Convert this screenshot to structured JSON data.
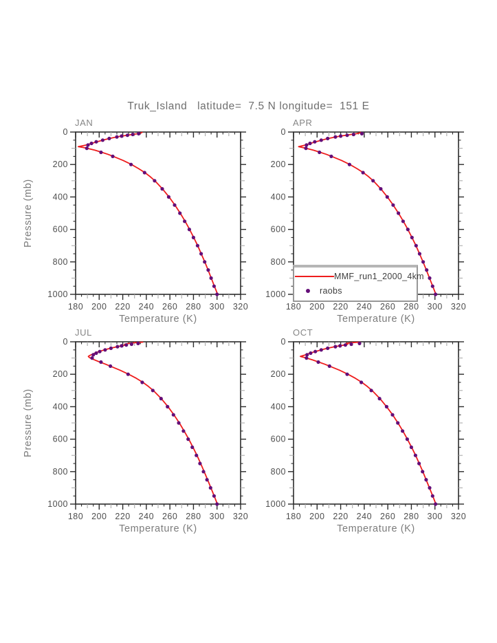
{
  "page": {
    "title": "Truk_Island   latitude=  7.5 N longitude=  151 E"
  },
  "colors": {
    "model_line": "#ee1c1c",
    "raobs_dot": "#640e78",
    "frame": "#2b2b2b",
    "tick_minor_gray": "#ababab",
    "tick_label_text": "#4e4e4e",
    "title_text": "#6e6e6e",
    "axis_title_text": "#7c7c7c",
    "legend_border": "#979797"
  },
  "legend": {
    "entries": [
      {
        "label": "MMF_run1_2000_4km",
        "type": "line",
        "color": "#ee1c1c"
      },
      {
        "label": "raobs",
        "type": "dot",
        "color": "#640e78"
      }
    ]
  },
  "axes": {
    "x": {
      "title": "Temperature (K)",
      "min": 180,
      "max": 320,
      "major_step": 20,
      "mid_step": 10,
      "minor_step": 5,
      "tick_values": [
        180,
        200,
        220,
        240,
        260,
        280,
        300,
        320
      ],
      "tick_labels": [
        "180",
        "200",
        "220",
        "240",
        "260",
        "280",
        "300",
        "320"
      ]
    },
    "y": {
      "title": "Pressure (mb)",
      "min": 0,
      "max": 1000,
      "major_step": 200,
      "mid_step": 100,
      "minor_step": 50,
      "tick_values": [
        0,
        200,
        400,
        600,
        800,
        1000
      ],
      "tick_labels": [
        "0",
        "200",
        "400",
        "600",
        "800",
        "1000"
      ],
      "inverted": true
    }
  },
  "chart_data": [
    {
      "type": "line",
      "panel_label": "JAN",
      "xlabel": "Temperature (K)",
      "ylabel": "Pressure (mb)",
      "xlim": [
        180,
        320
      ],
      "ylim": [
        1000,
        0
      ],
      "series": [
        {
          "name": "MMF_run1_2000_4km",
          "type": "line",
          "pressure_mb": [
            1000,
            950,
            900,
            850,
            800,
            750,
            700,
            650,
            600,
            550,
            500,
            450,
            400,
            350,
            300,
            275,
            250,
            225,
            200,
            175,
            150,
            137,
            125,
            112,
            100,
            95,
            90,
            85,
            80,
            70,
            60,
            50,
            40,
            30,
            25,
            20,
            15,
            10,
            5,
            2
          ],
          "temperature_k": [
            300.5,
            297.8,
            295.1,
            292.4,
            289.6,
            286.6,
            283.6,
            280.2,
            276.7,
            272.9,
            268.8,
            264.3,
            259.3,
            253.7,
            247.2,
            243.3,
            238.8,
            233.4,
            227.4,
            220.3,
            212.0,
            207.3,
            202.3,
            196.4,
            189.8,
            186.2,
            182.2,
            185.6,
            189.0,
            193.6,
            198.0,
            203.2,
            208.6,
            215.0,
            219.0,
            223.8,
            228.2,
            233.0,
            235.6,
            236.4
          ]
        },
        {
          "name": "raobs",
          "type": "scatter",
          "pressure_mb": [
            1000,
            950,
            900,
            850,
            800,
            750,
            700,
            650,
            600,
            550,
            500,
            450,
            400,
            350,
            300,
            250,
            200,
            150,
            125,
            100,
            80,
            70,
            60,
            50,
            40,
            30,
            25,
            20,
            15,
            10
          ],
          "temperature_k": [
            300.0,
            297.5,
            295.0,
            292.5,
            289.5,
            286.5,
            283.5,
            280.0,
            276.5,
            272.5,
            268.5,
            264.0,
            259.0,
            253.5,
            247.0,
            238.5,
            227.0,
            211.5,
            201.5,
            189.5,
            190.5,
            193.5,
            197.5,
            203.0,
            208.5,
            215.0,
            219.0,
            224.0,
            228.5,
            233.5
          ]
        }
      ]
    },
    {
      "type": "line",
      "panel_label": "APR",
      "xlabel": "Temperature (K)",
      "ylabel": "Pressure (mb)",
      "xlim": [
        180,
        320
      ],
      "ylim": [
        1000,
        0
      ],
      "series": [
        {
          "name": "MMF_run1_2000_4km",
          "type": "line",
          "pressure_mb": [
            1000,
            950,
            900,
            850,
            800,
            750,
            700,
            650,
            600,
            550,
            500,
            450,
            400,
            350,
            300,
            275,
            250,
            225,
            200,
            175,
            150,
            137,
            125,
            112,
            100,
            95,
            90,
            85,
            80,
            70,
            60,
            50,
            40,
            30,
            25,
            20,
            15,
            10,
            5,
            2
          ],
          "temperature_k": [
            300.8,
            298.1,
            295.4,
            292.7,
            289.9,
            286.9,
            283.9,
            280.5,
            277.0,
            273.2,
            269.1,
            264.6,
            259.6,
            254.1,
            247.6,
            243.7,
            239.2,
            233.8,
            227.8,
            220.7,
            212.4,
            207.7,
            202.7,
            196.9,
            190.6,
            187.3,
            184.3,
            187.2,
            190.2,
            194.4,
            198.7,
            204.0,
            209.4,
            215.8,
            219.8,
            224.4,
            228.8,
            233.6,
            236.2,
            236.8
          ]
        },
        {
          "name": "raobs",
          "type": "scatter",
          "pressure_mb": [
            1000,
            950,
            900,
            850,
            800,
            750,
            700,
            650,
            600,
            550,
            500,
            450,
            400,
            350,
            300,
            250,
            200,
            150,
            125,
            100,
            80,
            70,
            60,
            50,
            40,
            30,
            25,
            20,
            15,
            10
          ],
          "temperature_k": [
            300.5,
            298.0,
            295.5,
            293.0,
            290.0,
            287.0,
            284.0,
            280.5,
            277.0,
            273.0,
            269.0,
            264.5,
            259.5,
            254.0,
            247.5,
            239.0,
            227.5,
            212.0,
            202.0,
            190.5,
            191.0,
            194.0,
            198.0,
            203.5,
            209.0,
            215.5,
            220.0,
            225.5,
            231.0,
            238.0
          ]
        }
      ]
    },
    {
      "type": "line",
      "panel_label": "JUL",
      "xlabel": "Temperature (K)",
      "ylabel": "Pressure (mb)",
      "xlim": [
        180,
        320
      ],
      "ylim": [
        1000,
        0
      ],
      "series": [
        {
          "name": "MMF_run1_2000_4km",
          "type": "line",
          "pressure_mb": [
            1000,
            950,
            900,
            850,
            800,
            750,
            700,
            650,
            600,
            550,
            500,
            450,
            400,
            350,
            300,
            275,
            250,
            225,
            200,
            175,
            150,
            137,
            125,
            112,
            100,
            95,
            90,
            85,
            80,
            70,
            60,
            50,
            40,
            30,
            25,
            20,
            15,
            10,
            5,
            2
          ],
          "temperature_k": [
            300.3,
            297.6,
            294.8,
            292.0,
            289.1,
            286.1,
            283.0,
            279.6,
            276.0,
            272.1,
            268.0,
            263.4,
            258.4,
            252.7,
            245.9,
            241.8,
            237.1,
            231.5,
            225.0,
            217.7,
            209.4,
            205.0,
            200.6,
            196.2,
            192.4,
            191.4,
            190.8,
            191.8,
            193.2,
            196.4,
            199.8,
            204.4,
            209.6,
            215.4,
            218.8,
            222.6,
            221.6,
            225.0,
            231.0,
            237.0
          ]
        },
        {
          "name": "raobs",
          "type": "scatter",
          "pressure_mb": [
            1000,
            950,
            900,
            850,
            800,
            750,
            700,
            650,
            600,
            550,
            500,
            450,
            400,
            350,
            300,
            250,
            200,
            150,
            125,
            100,
            80,
            70,
            60,
            50,
            40,
            30,
            25,
            20,
            15,
            10
          ],
          "temperature_k": [
            300.0,
            297.5,
            294.5,
            291.5,
            288.5,
            285.5,
            282.5,
            279.0,
            275.5,
            271.5,
            267.5,
            263.0,
            258.0,
            252.5,
            245.5,
            236.5,
            224.5,
            209.5,
            201.5,
            194.0,
            195.0,
            197.5,
            200.5,
            205.0,
            210.0,
            215.5,
            219.0,
            223.0,
            227.5,
            233.0
          ]
        }
      ]
    },
    {
      "type": "line",
      "panel_label": "OCT",
      "xlabel": "Temperature (K)",
      "ylabel": "Pressure (mb)",
      "xlim": [
        180,
        320
      ],
      "ylim": [
        1000,
        0
      ],
      "series": [
        {
          "name": "MMF_run1_2000_4km",
          "type": "line",
          "pressure_mb": [
            1000,
            950,
            900,
            850,
            800,
            750,
            700,
            650,
            600,
            550,
            500,
            450,
            400,
            350,
            300,
            275,
            250,
            225,
            200,
            175,
            150,
            137,
            125,
            112,
            100,
            95,
            90,
            85,
            80,
            70,
            60,
            50,
            40,
            30,
            25,
            20,
            15,
            10,
            5,
            2
          ],
          "temperature_k": [
            300.8,
            298.1,
            295.3,
            292.5,
            289.7,
            286.7,
            283.6,
            280.2,
            276.6,
            272.8,
            268.6,
            264.1,
            259.0,
            253.3,
            246.6,
            242.6,
            238.0,
            232.5,
            226.2,
            219.0,
            210.6,
            206.1,
            201.4,
            196.2,
            191.0,
            188.2,
            185.8,
            188.0,
            190.4,
            194.2,
            198.4,
            203.4,
            208.8,
            215.0,
            218.8,
            223.2,
            226.0,
            224.6,
            230.0,
            236.4
          ]
        },
        {
          "name": "raobs",
          "type": "scatter",
          "pressure_mb": [
            1000,
            950,
            900,
            850,
            800,
            750,
            700,
            650,
            600,
            550,
            500,
            450,
            400,
            350,
            300,
            250,
            200,
            150,
            125,
            100,
            80,
            70,
            60,
            50,
            40,
            30,
            25,
            20,
            15,
            10
          ],
          "temperature_k": [
            300.5,
            298.0,
            295.5,
            292.5,
            289.5,
            286.5,
            283.5,
            280.0,
            276.5,
            272.5,
            268.5,
            264.0,
            259.0,
            253.0,
            246.0,
            237.5,
            225.5,
            210.5,
            201.0,
            191.0,
            191.5,
            194.5,
            198.5,
            203.5,
            209.0,
            215.5,
            219.5,
            224.0,
            229.0,
            236.0
          ]
        }
      ]
    }
  ]
}
